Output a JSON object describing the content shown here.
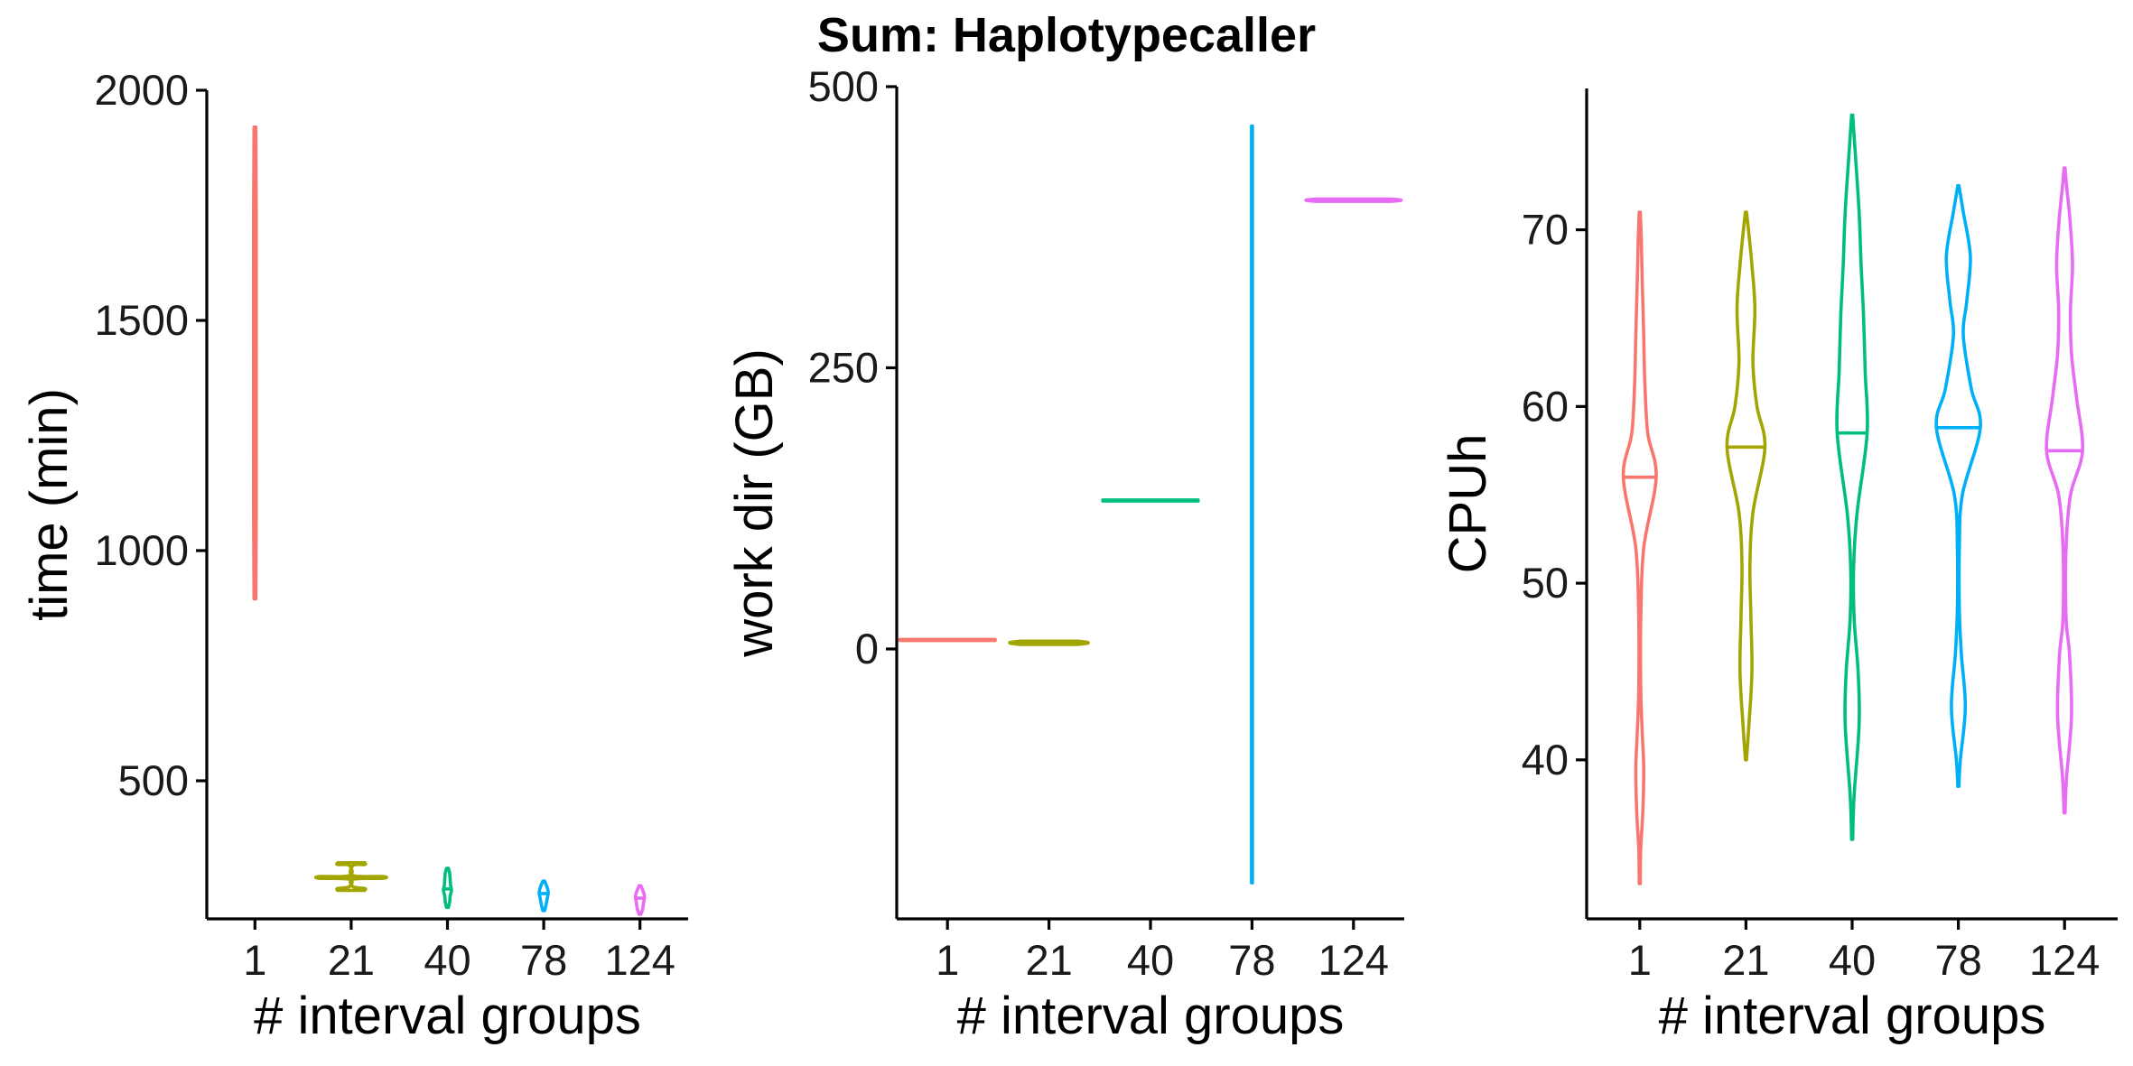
{
  "title": "Sum: Haplotypecaller",
  "chart_data": [
    {
      "type": "violin",
      "xlabel": "# interval groups",
      "ylabel": "time (min)",
      "ylim": [
        200,
        2000
      ],
      "yticks": [
        500,
        1000,
        1500,
        2000
      ],
      "categories": [
        "1",
        "21",
        "40",
        "78",
        "124"
      ],
      "colors": [
        "#F8766D",
        "#A3A500",
        "#00BF7D",
        "#00B0F6",
        "#E76BF3"
      ],
      "groups": [
        {
          "category": "1",
          "min": 895,
          "max": 1920,
          "median": 1500,
          "profile": [
            [
              895,
              2
            ],
            [
              1100,
              3
            ],
            [
              1400,
              3
            ],
            [
              1700,
              3
            ],
            [
              1920,
              2
            ]
          ]
        },
        {
          "category": "21",
          "min": 262,
          "max": 322,
          "median": 290,
          "profile": [
            [
              262,
              30
            ],
            [
              266,
              30
            ],
            [
              270,
              4
            ],
            [
              286,
              4
            ],
            [
              288,
              70
            ],
            [
              292,
              70
            ],
            [
              294,
              4
            ],
            [
              316,
              4
            ],
            [
              318,
              30
            ],
            [
              322,
              30
            ]
          ]
        },
        {
          "category": "40",
          "min": 225,
          "max": 310,
          "median": 265,
          "profile": [
            [
              225,
              2
            ],
            [
              238,
              5
            ],
            [
              250,
              6
            ],
            [
              262,
              9
            ],
            [
              272,
              7
            ],
            [
              285,
              6
            ],
            [
              298,
              5
            ],
            [
              310,
              2
            ]
          ]
        },
        {
          "category": "78",
          "min": 218,
          "max": 282,
          "median": 255,
          "profile": [
            [
              218,
              2
            ],
            [
              230,
              5
            ],
            [
              245,
              8
            ],
            [
              258,
              10
            ],
            [
              270,
              7
            ],
            [
              282,
              2
            ]
          ]
        },
        {
          "category": "124",
          "min": 210,
          "max": 272,
          "median": 245,
          "profile": [
            [
              210,
              2
            ],
            [
              222,
              6
            ],
            [
              235,
              8
            ],
            [
              248,
              10
            ],
            [
              260,
              7
            ],
            [
              272,
              2
            ]
          ]
        }
      ]
    },
    {
      "type": "violin",
      "xlabel": "# interval groups",
      "ylabel": "work dir (GB)",
      "ylim": [
        -240,
        500
      ],
      "yticks": [
        0,
        250,
        500
      ],
      "categories": [
        "1",
        "21",
        "40",
        "78",
        "124"
      ],
      "colors": [
        "#F8766D",
        "#A3A500",
        "#00BF7D",
        "#00B0F6",
        "#E76BF3"
      ],
      "groups": [
        {
          "category": "1",
          "min": 8,
          "max": 8,
          "median": 8,
          "profile": [
            [
              7.5,
              100
            ],
            [
              8.5,
              100
            ]
          ]
        },
        {
          "category": "21",
          "min": 4,
          "max": 7,
          "median": 5,
          "profile": [
            [
              4,
              60
            ],
            [
              5,
              80
            ],
            [
              6,
              80
            ],
            [
              7,
              60
            ]
          ]
        },
        {
          "category": "40",
          "min": 132,
          "max": 132,
          "median": 132,
          "profile": [
            [
              131.5,
              100
            ],
            [
              132.5,
              100
            ]
          ]
        },
        {
          "category": "78",
          "min": -208,
          "max": 465,
          "median": 130,
          "profile": [
            [
              -208,
              1
            ],
            [
              0,
              1
            ],
            [
              250,
              1
            ],
            [
              465,
              1
            ]
          ]
        },
        {
          "category": "124",
          "min": 398,
          "max": 400,
          "median": 399,
          "profile": [
            [
              398,
              80
            ],
            [
              399,
              100
            ],
            [
              400,
              80
            ]
          ]
        }
      ]
    },
    {
      "type": "violin",
      "xlabel": "# interval groups",
      "ylabel": "CPUh",
      "ylim": [
        31,
        78
      ],
      "yticks": [
        40,
        50,
        60,
        70
      ],
      "categories": [
        "1",
        "21",
        "40",
        "78",
        "124"
      ],
      "colors": [
        "#F8766D",
        "#A3A500",
        "#00BF7D",
        "#00B0F6",
        "#E76BF3"
      ],
      "groups": [
        {
          "category": "1",
          "min": 33,
          "max": 71,
          "median": 56,
          "profile": [
            [
              33,
              1
            ],
            [
              35,
              2
            ],
            [
              37,
              6
            ],
            [
              39.5,
              8
            ],
            [
              41.5,
              5
            ],
            [
              44,
              2
            ],
            [
              48,
              2
            ],
            [
              52,
              8
            ],
            [
              56,
              33
            ],
            [
              58.5,
              16
            ],
            [
              61.5,
              10
            ],
            [
              64,
              8
            ],
            [
              67,
              5
            ],
            [
              69.5,
              3
            ],
            [
              71,
              1
            ]
          ]
        },
        {
          "category": "21",
          "min": 40,
          "max": 71,
          "median": 57.7,
          "profile": [
            [
              40,
              1
            ],
            [
              42,
              6
            ],
            [
              45,
              12
            ],
            [
              48,
              10
            ],
            [
              51,
              8
            ],
            [
              54,
              14
            ],
            [
              57.7,
              38
            ],
            [
              60,
              22
            ],
            [
              62.5,
              14
            ],
            [
              65.5,
              18
            ],
            [
              68,
              12
            ],
            [
              70,
              5
            ],
            [
              71,
              1
            ]
          ]
        },
        {
          "category": "40",
          "min": 35.5,
          "max": 76.5,
          "median": 58.5,
          "profile": [
            [
              35.5,
              1
            ],
            [
              38,
              4
            ],
            [
              42,
              14
            ],
            [
              45,
              12
            ],
            [
              48,
              4
            ],
            [
              51,
              3
            ],
            [
              54,
              10
            ],
            [
              58.5,
              30
            ],
            [
              62,
              26
            ],
            [
              65,
              23
            ],
            [
              68,
              18
            ],
            [
              71,
              14
            ],
            [
              74,
              7
            ],
            [
              76.5,
              1
            ]
          ]
        },
        {
          "category": "78",
          "min": 38.5,
          "max": 72.5,
          "median": 58.8,
          "profile": [
            [
              38.5,
              1
            ],
            [
              40,
              4
            ],
            [
              43,
              14
            ],
            [
              46,
              6
            ],
            [
              48.5,
              2
            ],
            [
              52,
              2
            ],
            [
              55,
              8
            ],
            [
              58.8,
              44
            ],
            [
              61,
              26
            ],
            [
              64,
              10
            ],
            [
              66,
              17
            ],
            [
              68.5,
              24
            ],
            [
              71,
              10
            ],
            [
              72.5,
              1
            ]
          ]
        },
        {
          "category": "124",
          "min": 37,
          "max": 73.5,
          "median": 57.5,
          "profile": [
            [
              37,
              1
            ],
            [
              39,
              4
            ],
            [
              42.5,
              14
            ],
            [
              46,
              10
            ],
            [
              48,
              3
            ],
            [
              52,
              3
            ],
            [
              55,
              12
            ],
            [
              57.5,
              36
            ],
            [
              60.5,
              24
            ],
            [
              63,
              14
            ],
            [
              65.5,
              12
            ],
            [
              68,
              16
            ],
            [
              70.5,
              11
            ],
            [
              72.5,
              4
            ],
            [
              73.5,
              1
            ]
          ]
        }
      ]
    }
  ]
}
